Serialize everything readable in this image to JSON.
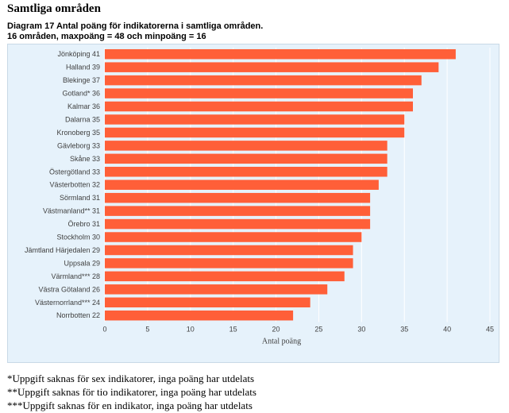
{
  "page": {
    "heading": "Samtliga områden",
    "chart_title_line1": "Diagram 17 Antal poäng för indikatorerna i samtliga områden.",
    "chart_title_line2": "16 områden, maxpoäng = 48 och minpoäng = 16"
  },
  "colors": {
    "bar": "#ff5f38",
    "panel_background": "#e6f2fb",
    "gridline": "#ffffff",
    "text": "#404040"
  },
  "chart_data": {
    "type": "bar",
    "orientation": "horizontal",
    "categories": [
      "Jönköping 41",
      "Halland 39",
      "Blekinge 37",
      "Gotland* 36",
      "Kalmar 36",
      "Dalarna 35",
      "Kronoberg 35",
      "Gävleborg 33",
      "Skåne 33",
      "Östergötland 33",
      "Västerbotten 32",
      "Sörmland 31",
      "Västmanland** 31",
      "Örebro 31",
      "Stockholm 30",
      "Jämtland Härjedalen 29",
      "Uppsala 29",
      "Värmland*** 28",
      "Västra Götaland 26",
      "Västernorrland*** 24",
      "Norrbotten 22"
    ],
    "values": [
      41,
      39,
      37,
      36,
      36,
      35,
      35,
      33,
      33,
      33,
      32,
      31,
      31,
      31,
      30,
      29,
      29,
      28,
      26,
      24,
      22
    ],
    "xlabel": "Antal poäng",
    "xlim": [
      0,
      45
    ],
    "xticks": [
      "0",
      "5",
      "10",
      "15",
      "20",
      "25",
      "30",
      "35",
      "40",
      "45"
    ],
    "grid": true,
    "legend": "none"
  },
  "footnotes": [
    "*Uppgift saknas för sex indikatorer, inga poäng har utdelats",
    "**Uppgift saknas för tio indikatorer, inga poäng har utdelats",
    "***Uppgift saknas för en indikator, inga poäng har utdelats"
  ]
}
